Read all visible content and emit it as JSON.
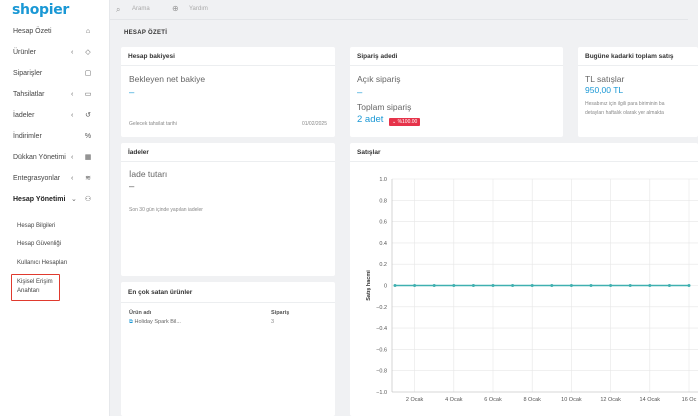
{
  "app": {
    "logo": "shopier"
  },
  "topbar": {
    "search_label": "Arama",
    "help_label": "Yardım"
  },
  "sidebar": {
    "items": [
      {
        "label": "Hesap Özeti",
        "chevron": "",
        "icon": "⌂"
      },
      {
        "label": "Ürünler",
        "chevron": "‹",
        "icon": "◇"
      },
      {
        "label": "Siparişler",
        "chevron": "",
        "icon": "▢"
      },
      {
        "label": "Tahsilatlar",
        "chevron": "‹",
        "icon": "▭"
      },
      {
        "label": "İadeler",
        "chevron": "‹",
        "icon": "↺"
      },
      {
        "label": "İndirimler",
        "chevron": "",
        "icon": "%"
      },
      {
        "label": "Dükkan Yönetimi",
        "chevron": "‹",
        "icon": "▦"
      },
      {
        "label": "Entegrasyonlar",
        "chevron": "‹",
        "icon": "≋"
      },
      {
        "label": "Hesap Yönetimi",
        "chevron": "⌄",
        "icon": "⚇"
      }
    ],
    "subitems": [
      {
        "label": "Hesap Bilgileri"
      },
      {
        "label": "Hesap Güvenliği"
      },
      {
        "label": "Kullanıcı Hesapları"
      },
      {
        "label_line1": "Kişisel Erişim",
        "label_line2": "Anahtarı"
      }
    ]
  },
  "page": {
    "title": "HESAP ÖZETİ"
  },
  "balance": {
    "title": "Hesap bakiyesi",
    "pending_label": "Bekleyen net bakiye",
    "pending_value": "–",
    "future_label": "Gelecek tahsilat tarihi",
    "future_date": "01/02/2025"
  },
  "orders": {
    "title": "Sipariş adedi",
    "open_label": "Açık sipariş",
    "open_value": "–",
    "total_label": "Toplam sipariş",
    "total_value": "2 adet",
    "badge": "⌄ %100.00"
  },
  "sales_total": {
    "title": "Bugüne kadarki toplam satış",
    "label": "TL satışlar",
    "value": "950,00 TL",
    "note1": "Hesabınız için ilgili para biriminin ba",
    "note2": "detayları haftalık olarak yer almakta"
  },
  "returns": {
    "title": "İadeler",
    "amount_label": "İade tutarı",
    "amount_value": "–",
    "note": "Son 30 gün içinde yapılan iadeler"
  },
  "bestsellers": {
    "title": "En çok satan ürünler",
    "col_product": "Ürün adı",
    "col_orders": "Sipariş",
    "rows": [
      {
        "name": "Holiday Spark Bil...",
        "orders": "3"
      }
    ]
  },
  "sales_chart": {
    "title": "Satışlar"
  },
  "chart_data": {
    "type": "line",
    "ylabel": "Satış hacmi",
    "ylim": [
      -1.0,
      1.0
    ],
    "yticks": [
      "1.0",
      "0.8",
      "0.6",
      "0.4",
      "0.2",
      "0",
      "−0.2",
      "−0.4",
      "−0.6",
      "−0.8",
      "−1.0"
    ],
    "x_tick_labels": [
      "2 Ocak",
      "4 Ocak",
      "6 Ocak",
      "8 Ocak",
      "10 Ocak",
      "12 Ocak",
      "14 Ocak",
      "16 Oc"
    ],
    "x": [
      1,
      2,
      3,
      4,
      5,
      6,
      7,
      8,
      9,
      10,
      11,
      12,
      13,
      14,
      15,
      16
    ],
    "series": [
      {
        "values": [
          0,
          0,
          0,
          0,
          0,
          0,
          0,
          0,
          0,
          0,
          0,
          0,
          0,
          0,
          0,
          0
        ],
        "color": "#3fb0b0"
      }
    ],
    "grid": true
  }
}
